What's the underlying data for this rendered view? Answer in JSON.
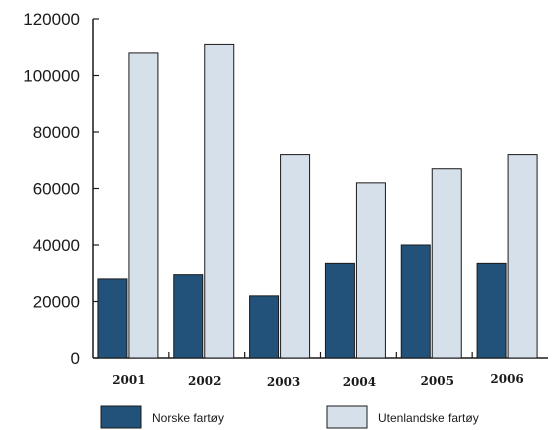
{
  "chart_data": {
    "type": "bar",
    "title": "",
    "xlabel": "",
    "ylabel": "",
    "categories": [
      "2001",
      "2002",
      "2003",
      "2004",
      "2005",
      "2006"
    ],
    "series": [
      {
        "name": "Norske fartøy",
        "values": [
          28000,
          29500,
          22000,
          33500,
          40000,
          33500
        ],
        "color": "#22527a"
      },
      {
        "name": "Utenlandske fartøy",
        "values": [
          108000,
          111000,
          72000,
          62000,
          67000,
          72000
        ],
        "color": "#d5e0ea"
      }
    ],
    "ylim": [
      0,
      120000
    ],
    "yticks": [
      0,
      20000,
      40000,
      60000,
      80000,
      100000,
      120000
    ],
    "grid": false,
    "legend_position": "bottom"
  }
}
